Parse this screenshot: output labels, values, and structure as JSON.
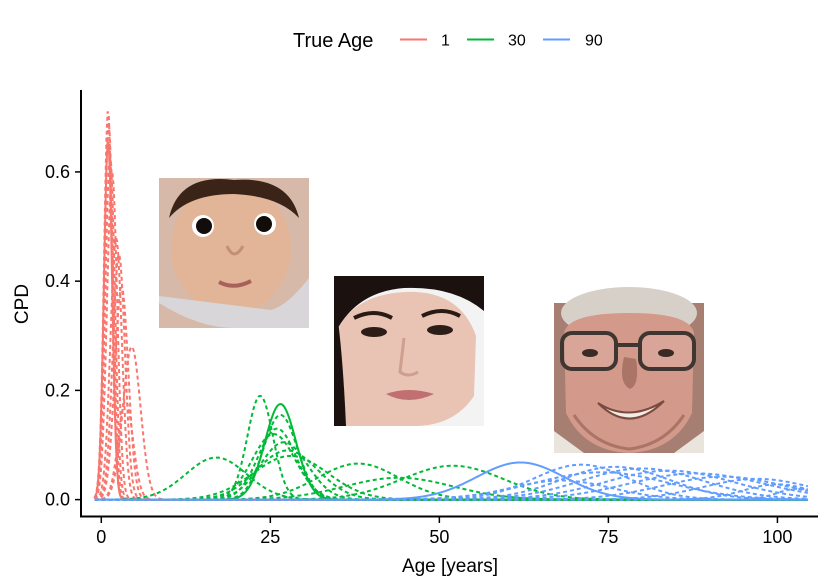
{
  "legend": {
    "title": "True Age",
    "items": [
      {
        "label": "1",
        "color": "#F8766D"
      },
      {
        "label": "30",
        "color": "#00BA38"
      },
      {
        "label": "90",
        "color": "#619CFF"
      }
    ]
  },
  "chart_data": {
    "type": "line",
    "xlabel": "Age [years]",
    "ylabel": "CPD",
    "xlim": [
      -3,
      106
    ],
    "ylim": [
      -0.03,
      0.75
    ],
    "xticks": [
      0,
      25,
      50,
      75,
      100
    ],
    "yticks": [
      0.0,
      0.2,
      0.4,
      0.6
    ],
    "ytick_labels": [
      "0.0",
      "0.2",
      "0.4",
      "0.6"
    ],
    "grid": false,
    "legend_position": "top",
    "line_styles": {
      "solid": "true distribution",
      "dashed": "predicted distributions"
    },
    "series": [
      {
        "name": "1",
        "color": "#F8766D",
        "solid": {
          "mu": 1.0,
          "sigma": 0.6,
          "peak": 0.66
        },
        "dashed": [
          {
            "mu": 1.0,
            "sigma": 0.6,
            "peak": 0.715
          },
          {
            "mu": 1.1,
            "sigma": 0.65,
            "peak": 0.69
          },
          {
            "mu": 1.3,
            "sigma": 0.7,
            "peak": 0.63
          },
          {
            "mu": 1.6,
            "sigma": 0.75,
            "peak": 0.6
          },
          {
            "mu": 2.2,
            "sigma": 0.85,
            "peak": 0.48
          },
          {
            "mu": 2.6,
            "sigma": 0.9,
            "peak": 0.45
          },
          {
            "mu": 3.0,
            "sigma": 1.0,
            "peak": 0.39
          },
          {
            "mu": 4.5,
            "sigma": 1.3,
            "peak": 0.28
          },
          {
            "mu": 3.6,
            "sigma": 1.1,
            "peak": 0.18
          }
        ]
      },
      {
        "name": "30",
        "color": "#00BA38",
        "solid": {
          "mu": 26.5,
          "sigma": 2.3,
          "peak": 0.175
        },
        "dashed": [
          {
            "mu": 23.5,
            "sigma": 1.9,
            "peak": 0.19
          },
          {
            "mu": 26.5,
            "sigma": 2.5,
            "peak": 0.155
          },
          {
            "mu": 26.0,
            "sigma": 2.8,
            "peak": 0.13
          },
          {
            "mu": 25.5,
            "sigma": 3.2,
            "peak": 0.12
          },
          {
            "mu": 27.0,
            "sigma": 3.5,
            "peak": 0.105
          },
          {
            "mu": 27.5,
            "sigma": 4.5,
            "peak": 0.09
          },
          {
            "mu": 28.0,
            "sigma": 5.5,
            "peak": 0.08
          },
          {
            "mu": 17.0,
            "sigma": 4.5,
            "peak": 0.077
          },
          {
            "mu": 38.0,
            "sigma": 6.0,
            "peak": 0.066
          },
          {
            "mu": 52.0,
            "sigma": 7.5,
            "peak": 0.062
          },
          {
            "mu": 44.0,
            "sigma": 8.0,
            "peak": 0.04
          }
        ]
      },
      {
        "name": "90",
        "color": "#619CFF",
        "solid": {
          "mu": 62.0,
          "sigma": 6.5,
          "peak": 0.068
        },
        "dashed": [
          {
            "mu": 71.0,
            "sigma": 7.0,
            "peak": 0.064
          },
          {
            "mu": 76.0,
            "sigma": 8.0,
            "peak": 0.06
          },
          {
            "mu": 80.0,
            "sigma": 9.0,
            "peak": 0.057
          },
          {
            "mu": 84.0,
            "sigma": 9.5,
            "peak": 0.053
          },
          {
            "mu": 88.0,
            "sigma": 10.0,
            "peak": 0.048
          },
          {
            "mu": 74.0,
            "sigma": 10.0,
            "peak": 0.05
          },
          {
            "mu": 92.0,
            "sigma": 9.0,
            "peak": 0.042
          },
          {
            "mu": 97.0,
            "sigma": 8.0,
            "peak": 0.038
          },
          {
            "mu": 68.0,
            "sigma": 7.5,
            "peak": 0.035
          },
          {
            "mu": 100.0,
            "sigma": 5.0,
            "peak": 0.028
          },
          {
            "mu": 103.0,
            "sigma": 3.0,
            "peak": 0.02
          }
        ]
      }
    ]
  },
  "photos": {
    "baby": {
      "label": "baby-face-photo",
      "skin": "#e2b598",
      "shadow": "#c48f74",
      "hair": "#3a2418",
      "background": "#d7b9a9",
      "clothing": "#d8d6d9"
    },
    "woman": {
      "label": "woman-face-photo",
      "skin": "#e9c3b4",
      "shadow": "#cf9e8f",
      "hair": "#1b1210",
      "background": "#f3f3f3",
      "lips": "#c07070"
    },
    "elder": {
      "label": "elderly-man-face-photo",
      "skin": "#d3998a",
      "shadow": "#aa7466",
      "hair": "#d6d0c8",
      "background": "#a67e72",
      "shirt": "#e9e4dc",
      "glasses": "#3f3631"
    }
  }
}
